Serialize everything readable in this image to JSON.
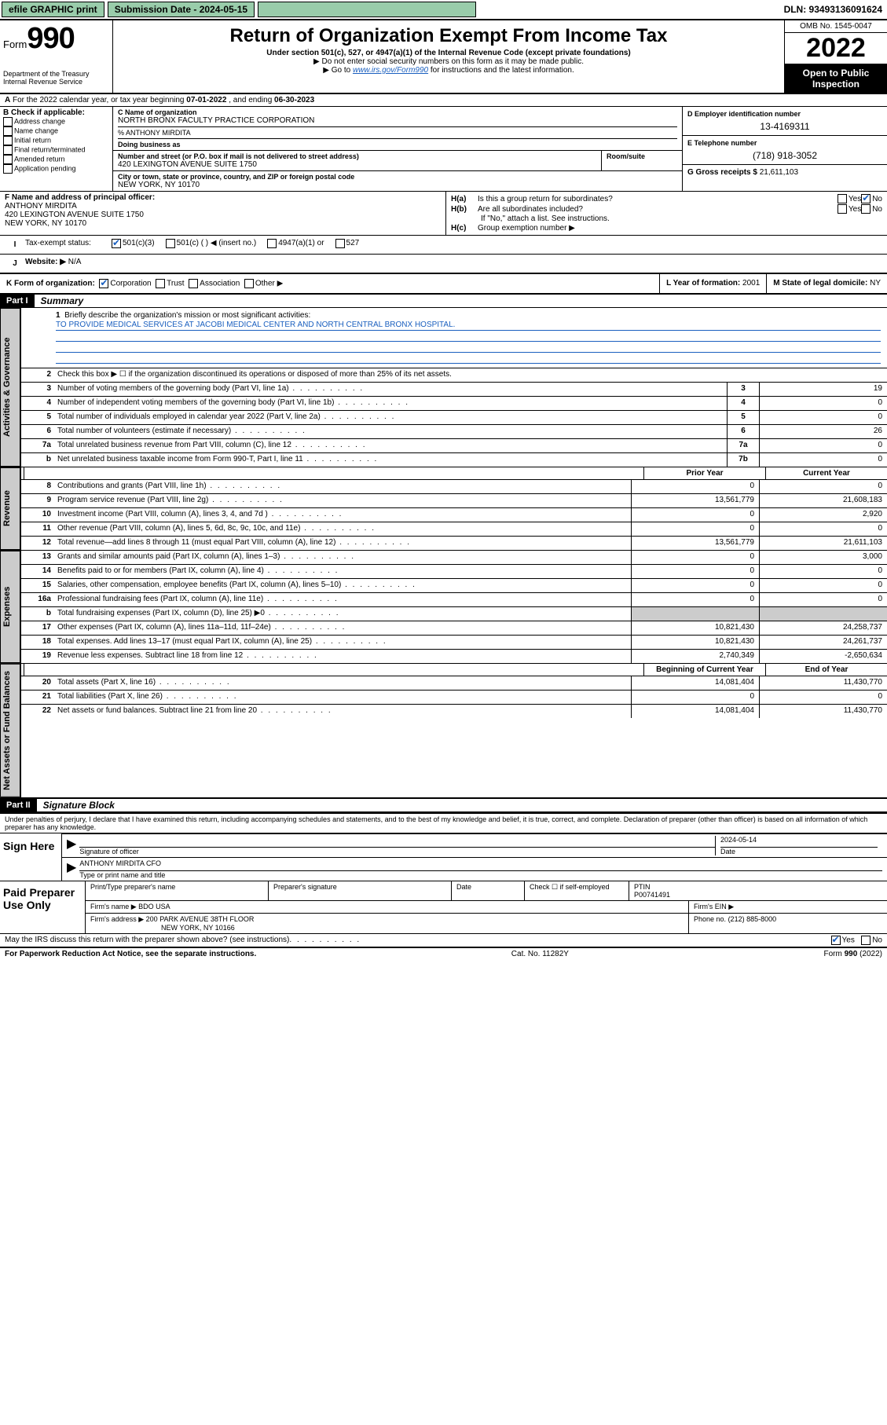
{
  "topbar": {
    "efile": "efile GRAPHIC print",
    "submission_label": "Submission Date - 2024-05-15",
    "dln": "DLN: 93493136091624"
  },
  "header": {
    "form_prefix": "Form",
    "form_number": "990",
    "title": "Return of Organization Exempt From Income Tax",
    "subtitle": "Under section 501(c), 527, or 4947(a)(1) of the Internal Revenue Code (except private foundations)",
    "note1": "▶ Do not enter social security numbers on this form as it may be made public.",
    "note2_prefix": "▶ Go to ",
    "note2_link": "www.irs.gov/Form990",
    "note2_suffix": " for instructions and the latest information.",
    "dept": "Department of the Treasury\nInternal Revenue Service",
    "omb": "OMB No. 1545-0047",
    "year": "2022",
    "inspection": "Open to Public Inspection"
  },
  "line_a": {
    "prefix": "A",
    "text": "For the 2022 calendar year, or tax year beginning ",
    "begin": "07-01-2022",
    "mid": "   , and ending ",
    "end": "06-30-2023"
  },
  "section_b": {
    "label": "B Check if applicable:",
    "items": [
      "Address change",
      "Name change",
      "Initial return",
      "Final return/terminated",
      "Amended return",
      "Application pending"
    ]
  },
  "section_c": {
    "name_label": "C Name of organization",
    "name": "NORTH BRONX FACULTY PRACTICE CORPORATION",
    "care_of": "% ANTHONY MIRDITA",
    "dba_label": "Doing business as",
    "addr_label": "Number and street (or P.O. box if mail is not delivered to street address)",
    "room_label": "Room/suite",
    "addr": "420 LEXINGTON AVENUE SUITE 1750",
    "city_label": "City or town, state or province, country, and ZIP or foreign postal code",
    "city": "NEW YORK, NY  10170"
  },
  "section_d": {
    "label": "D Employer identification number",
    "value": "13-4169311"
  },
  "section_e": {
    "label": "E Telephone number",
    "value": "(718) 918-3052"
  },
  "section_g": {
    "label": "G Gross receipts $",
    "value": "21,611,103"
  },
  "section_f": {
    "label": "F  Name and address of principal officer:",
    "name": "ANTHONY MIRDITA",
    "addr1": "420 LEXINGTON AVENUE SUITE 1750",
    "addr2": "NEW YORK, NY  10170"
  },
  "section_h": {
    "ha_label": "H(a)",
    "ha_text": "Is this a group return for subordinates?",
    "hb_label": "H(b)",
    "hb_text": "Are all subordinates included?",
    "yes": "Yes",
    "no": "No",
    "note": "If \"No,\" attach a list. See instructions.",
    "hc_label": "H(c)",
    "hc_text": "Group exemption number ▶"
  },
  "section_i": {
    "label": "I",
    "text": "Tax-exempt status:",
    "opts": [
      "501(c)(3)",
      "501(c) (   ) ◀ (insert no.)",
      "4947(a)(1) or",
      "527"
    ]
  },
  "section_j": {
    "label": "J",
    "text": "Website: ▶",
    "value": "N/A"
  },
  "section_k": {
    "label": "K Form of organization:",
    "opts": [
      "Corporation",
      "Trust",
      "Association",
      "Other ▶"
    ]
  },
  "section_l": {
    "label": "L Year of formation:",
    "value": "2001"
  },
  "section_m": {
    "label": "M State of legal domicile:",
    "value": "NY"
  },
  "part1": {
    "header": "Part I",
    "title": "Summary",
    "tabs": {
      "governance": "Activities & Governance",
      "revenue": "Revenue",
      "expenses": "Expenses",
      "netassets": "Net Assets or Fund Balances"
    },
    "line1_label": "1",
    "line1_text": "Briefly describe the organization's mission or most significant activities:",
    "mission": "TO PROVIDE MEDICAL SERVICES AT JACOBI MEDICAL CENTER AND NORTH CENTRAL BRONX HOSPITAL.",
    "line2": "Check this box ▶ ☐  if the organization discontinued its operations or disposed of more than 25% of its net assets.",
    "lines_gov": [
      {
        "n": "3",
        "d": "Number of voting members of the governing body (Part VI, line 1a)",
        "box": "3",
        "v": "19"
      },
      {
        "n": "4",
        "d": "Number of independent voting members of the governing body (Part VI, line 1b)",
        "box": "4",
        "v": "0"
      },
      {
        "n": "5",
        "d": "Total number of individuals employed in calendar year 2022 (Part V, line 2a)",
        "box": "5",
        "v": "0"
      },
      {
        "n": "6",
        "d": "Total number of volunteers (estimate if necessary)",
        "box": "6",
        "v": "26"
      },
      {
        "n": "7a",
        "d": "Total unrelated business revenue from Part VIII, column (C), line 12",
        "box": "7a",
        "v": "0"
      },
      {
        "n": "b",
        "d": "Net unrelated business taxable income from Form 990-T, Part I, line 11",
        "box": "7b",
        "v": "0"
      }
    ],
    "col_prior": "Prior Year",
    "col_current": "Current Year",
    "lines_rev": [
      {
        "n": "8",
        "d": "Contributions and grants (Part VIII, line 1h)",
        "p": "0",
        "c": "0"
      },
      {
        "n": "9",
        "d": "Program service revenue (Part VIII, line 2g)",
        "p": "13,561,779",
        "c": "21,608,183"
      },
      {
        "n": "10",
        "d": "Investment income (Part VIII, column (A), lines 3, 4, and 7d )",
        "p": "0",
        "c": "2,920"
      },
      {
        "n": "11",
        "d": "Other revenue (Part VIII, column (A), lines 5, 6d, 8c, 9c, 10c, and 11e)",
        "p": "0",
        "c": "0"
      },
      {
        "n": "12",
        "d": "Total revenue—add lines 8 through 11 (must equal Part VIII, column (A), line 12)",
        "p": "13,561,779",
        "c": "21,611,103"
      }
    ],
    "lines_exp": [
      {
        "n": "13",
        "d": "Grants and similar amounts paid (Part IX, column (A), lines 1–3)",
        "p": "0",
        "c": "3,000"
      },
      {
        "n": "14",
        "d": "Benefits paid to or for members (Part IX, column (A), line 4)",
        "p": "0",
        "c": "0"
      },
      {
        "n": "15",
        "d": "Salaries, other compensation, employee benefits (Part IX, column (A), lines 5–10)",
        "p": "0",
        "c": "0"
      },
      {
        "n": "16a",
        "d": "Professional fundraising fees (Part IX, column (A), line 11e)",
        "p": "0",
        "c": "0"
      },
      {
        "n": "b",
        "d": "Total fundraising expenses (Part IX, column (D), line 25) ▶0",
        "p": "",
        "c": "",
        "shaded": true
      },
      {
        "n": "17",
        "d": "Other expenses (Part IX, column (A), lines 11a–11d, 11f–24e)",
        "p": "10,821,430",
        "c": "24,258,737"
      },
      {
        "n": "18",
        "d": "Total expenses. Add lines 13–17 (must equal Part IX, column (A), line 25)",
        "p": "10,821,430",
        "c": "24,261,737"
      },
      {
        "n": "19",
        "d": "Revenue less expenses. Subtract line 18 from line 12",
        "p": "2,740,349",
        "c": "-2,650,634"
      }
    ],
    "col_begin": "Beginning of Current Year",
    "col_end": "End of Year",
    "lines_net": [
      {
        "n": "20",
        "d": "Total assets (Part X, line 16)",
        "p": "14,081,404",
        "c": "11,430,770"
      },
      {
        "n": "21",
        "d": "Total liabilities (Part X, line 26)",
        "p": "0",
        "c": "0"
      },
      {
        "n": "22",
        "d": "Net assets or fund balances. Subtract line 21 from line 20",
        "p": "14,081,404",
        "c": "11,430,770"
      }
    ]
  },
  "part2": {
    "header": "Part II",
    "title": "Signature Block",
    "declare": "Under penalties of perjury, I declare that I have examined this return, including accompanying schedules and statements, and to the best of my knowledge and belief, it is true, correct, and complete. Declaration of preparer (other than officer) is based on all information of which preparer has any knowledge.",
    "sign_here": "Sign Here",
    "sig_officer_label": "Signature of officer",
    "sig_date_label": "Date",
    "sig_date": "2024-05-14",
    "name_title": "ANTHONY MIRDITA CFO",
    "name_title_label": "Type or print name and title",
    "paid_label": "Paid Preparer Use Only",
    "prep_name_label": "Print/Type preparer's name",
    "prep_sig_label": "Preparer's signature",
    "prep_date_label": "Date",
    "prep_check_label": "Check ☐ if self-employed",
    "ptin_label": "PTIN",
    "ptin": "P00741491",
    "firm_name_label": "Firm's name    ▶",
    "firm_name": "BDO USA",
    "firm_ein_label": "Firm's EIN ▶",
    "firm_addr_label": "Firm's address ▶",
    "firm_addr1": "200 PARK AVENUE 38TH FLOOR",
    "firm_addr2": "NEW YORK, NY  10166",
    "phone_label": "Phone no.",
    "phone": "(212) 885-8000",
    "discuss": "May the IRS discuss this return with the preparer shown above? (see instructions)",
    "yes": "Yes",
    "no": "No"
  },
  "footer": {
    "left": "For Paperwork Reduction Act Notice, see the separate instructions.",
    "mid": "Cat. No. 11282Y",
    "right": "Form 990 (2022)"
  }
}
